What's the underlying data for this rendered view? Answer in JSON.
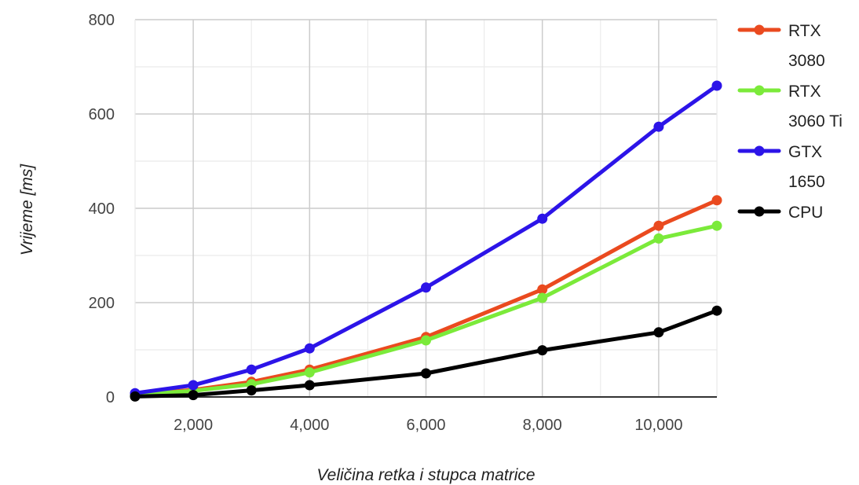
{
  "chart_data": {
    "type": "line",
    "xlabel": "Veličina retka i stupca matrice",
    "ylabel": "Vrijeme [ms]",
    "xlim": [
      1000,
      11000
    ],
    "ylim": [
      0,
      800
    ],
    "x_ticks": [
      2000,
      4000,
      6000,
      8000,
      10000
    ],
    "x_tick_labels": [
      "2,000",
      "4,000",
      "6,000",
      "8,000",
      "10,000"
    ],
    "y_ticks": [
      0,
      200,
      400,
      600,
      800
    ],
    "y_tick_labels": [
      "0",
      "200",
      "400",
      "600",
      "800"
    ],
    "grid": true,
    "legend_position": "right",
    "x": [
      1000,
      2000,
      3000,
      4000,
      6000,
      8000,
      10000,
      11000
    ],
    "series": [
      {
        "name": "RTX 3080",
        "legend_lines": [
          "RTX",
          "3080"
        ],
        "color": "#ea4a1f",
        "values": [
          5,
          15,
          32,
          58,
          127,
          228,
          363,
          417
        ]
      },
      {
        "name": "RTX 3060 Ti",
        "legend_lines": [
          "RTX",
          "3060 Ti"
        ],
        "color": "#7bea3a",
        "values": [
          5,
          13,
          27,
          52,
          120,
          210,
          336,
          363
        ]
      },
      {
        "name": "GTX 1650",
        "legend_lines": [
          "GTX",
          "1650"
        ],
        "color": "#2c14e8",
        "values": [
          8,
          25,
          58,
          103,
          232,
          378,
          573,
          660
        ]
      },
      {
        "name": "CPU",
        "legend_lines": [
          "CPU"
        ],
        "color": "#000000",
        "values": [
          1,
          4,
          14,
          25,
          50,
          99,
          137,
          183
        ]
      }
    ]
  }
}
